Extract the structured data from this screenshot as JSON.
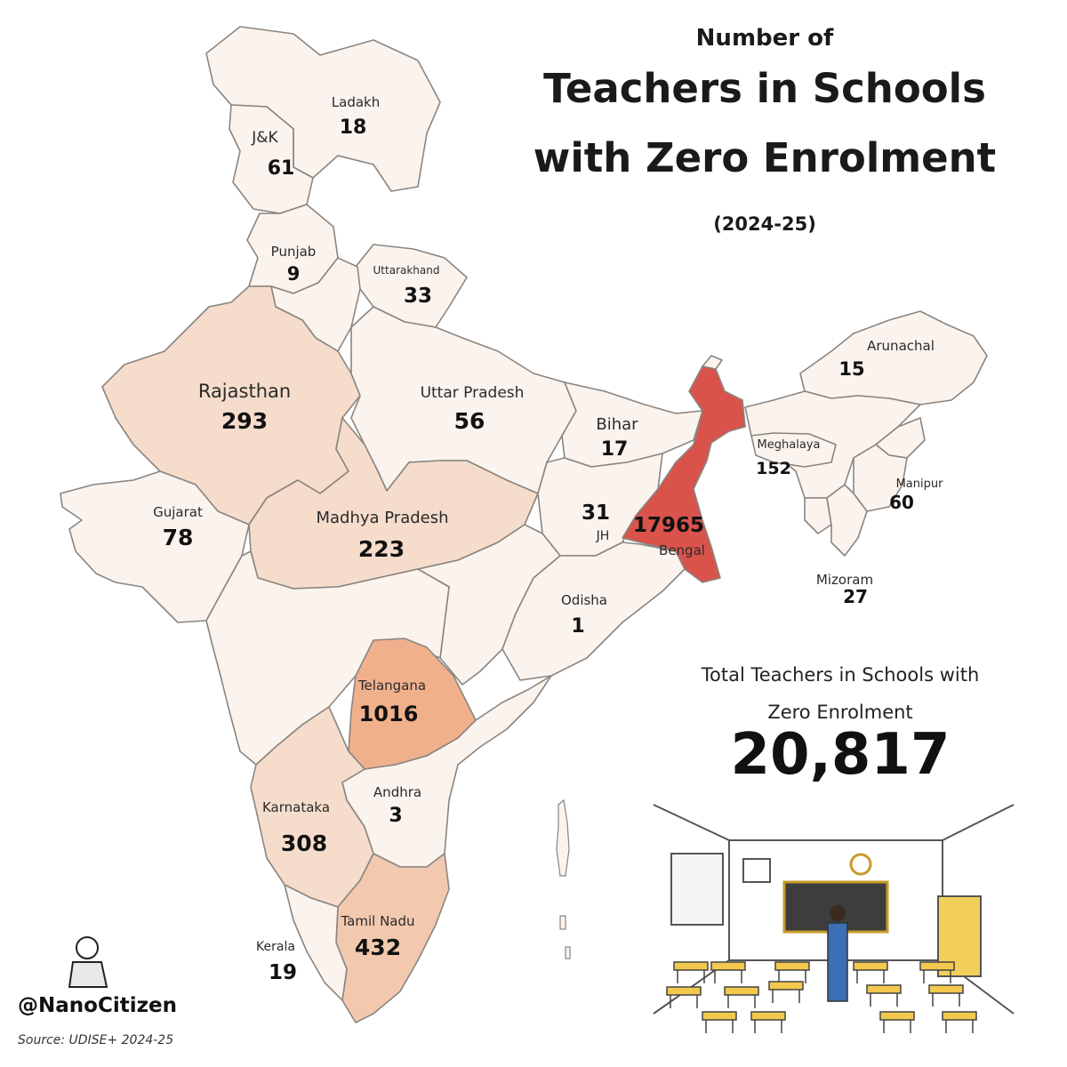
{
  "title": {
    "line1": "Number of",
    "line2": "Teachers in Schools",
    "line3": "with Zero Enrolment",
    "period": "(2024-25)"
  },
  "total": {
    "label_line1": "Total Teachers in Schools with",
    "label_line2": "Zero Enrolment",
    "value": "20,817"
  },
  "credit": {
    "handle": "@NanoCitizen",
    "source": "Source: UDISE+ 2024-25"
  },
  "colors": {
    "lowest": "#fbf3ee",
    "low": "#f8e7dc",
    "medium_low": "#f5dccb",
    "medium": "#f2c9ae",
    "high": "#f0b08c",
    "highest": "#d9534b",
    "border": "#8a8580"
  },
  "chart_data": {
    "type": "choropleth",
    "states": [
      {
        "name": "Ladakh",
        "value": 18
      },
      {
        "name": "J&K",
        "value": 61
      },
      {
        "name": "Punjab",
        "value": 9
      },
      {
        "name": "Uttarakhand",
        "value": 33
      },
      {
        "name": "Rajasthan",
        "value": 293
      },
      {
        "name": "Uttar Pradesh",
        "value": 56
      },
      {
        "name": "Bihar",
        "value": 17
      },
      {
        "name": "Gujarat",
        "value": 78
      },
      {
        "name": "Madhya Pradesh",
        "value": 223
      },
      {
        "name": "JH",
        "value": 31
      },
      {
        "name": "Bengal",
        "value": 17965
      },
      {
        "name": "Odisha",
        "value": 1
      },
      {
        "name": "Telangana",
        "value": 1016
      },
      {
        "name": "Andhra",
        "value": 3
      },
      {
        "name": "Karnataka",
        "value": 308
      },
      {
        "name": "Tamil Nadu",
        "value": 432
      },
      {
        "name": "Kerala",
        "value": 19
      },
      {
        "name": "Arunachal",
        "value": 15
      },
      {
        "name": "Meghalaya",
        "value": 152
      },
      {
        "name": "Manipur",
        "value": 60
      },
      {
        "name": "Mizoram",
        "value": 27
      }
    ]
  }
}
